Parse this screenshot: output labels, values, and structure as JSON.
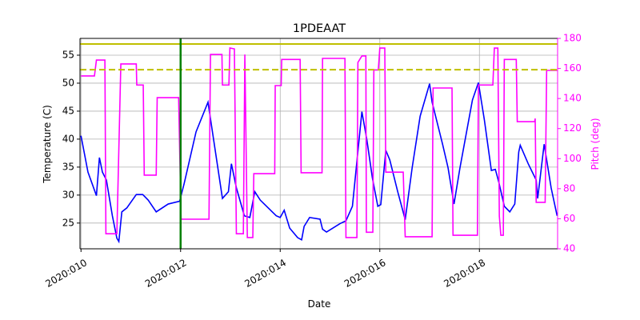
{
  "chart_data": {
    "type": "line",
    "title": "1PDEAAT",
    "xlabel": "Date",
    "ylabel": "Temperature (C)",
    "y2label": "Pitch (deg)",
    "xlim": [
      9.98,
      19.57
    ],
    "ylim": [
      20.4,
      58
    ],
    "y2lim": [
      40,
      180
    ],
    "xticks": [
      {
        "value": 10,
        "label": "2020:010"
      },
      {
        "value": 12,
        "label": "2020:012"
      },
      {
        "value": 14,
        "label": "2020:014"
      },
      {
        "value": 16,
        "label": "2020:016"
      },
      {
        "value": 18,
        "label": "2020:018"
      }
    ],
    "yticks": [
      25,
      30,
      35,
      40,
      45,
      50,
      55
    ],
    "y2ticks": [
      40,
      60,
      80,
      100,
      120,
      140,
      160,
      180
    ],
    "grid": true,
    "y2color": "#ff00ff",
    "hlines": [
      {
        "value": 57,
        "color": "#bfbf00",
        "dashed": false
      },
      {
        "value": 52.4,
        "color": "#bfbf00",
        "dashed": true
      }
    ],
    "vlines": [
      {
        "value": 12,
        "color": "#008000"
      }
    ],
    "series": [
      {
        "color": "#0000ff",
        "axis": "y",
        "x": [
          10.0,
          10.14,
          10.31,
          10.37,
          10.43,
          10.51,
          10.63,
          10.72,
          10.76,
          10.82,
          10.92,
          11.11,
          11.24,
          11.35,
          11.51,
          11.75,
          11.98,
          12.07,
          12.31,
          12.55,
          12.84,
          12.96,
          13.02,
          13.12,
          13.28,
          13.39,
          13.49,
          13.6,
          13.84,
          13.92,
          14.0,
          14.08,
          14.19,
          14.35,
          14.43,
          14.48,
          14.59,
          14.8,
          14.85,
          14.93,
          15.2,
          15.32,
          15.45,
          15.64,
          15.74,
          15.85,
          15.96,
          16.02,
          16.12,
          16.2,
          16.36,
          16.51,
          16.65,
          16.81,
          17.0,
          17.05,
          17.26,
          17.37,
          17.49,
          17.61,
          17.86,
          17.98,
          18.1,
          18.24,
          18.32,
          18.39,
          18.5,
          18.61,
          18.71,
          18.79,
          18.82,
          18.98,
          19.14,
          19.17,
          19.3,
          19.44,
          19.56
        ],
        "values": [
          40.6,
          34.1,
          29.9,
          36.7,
          34.1,
          32.7,
          26.3,
          22.3,
          21.7,
          27,
          27.7,
          30.1,
          30.1,
          29.1,
          27,
          28.4,
          28.9,
          32,
          41.3,
          46.6,
          29.4,
          30.6,
          35.6,
          31.3,
          26.3,
          26,
          30.6,
          29.1,
          27,
          26.3,
          26,
          27.3,
          24.1,
          22.4,
          22,
          24.4,
          26,
          25.7,
          23.9,
          23.4,
          24.9,
          25.4,
          28,
          44.9,
          39.9,
          33.1,
          28,
          28.3,
          38,
          36.3,
          30.6,
          25.6,
          34.9,
          44.1,
          49.9,
          46.6,
          39.1,
          34.9,
          28.4,
          34.9,
          47,
          50.1,
          43.4,
          34.4,
          34.6,
          32.3,
          28,
          27,
          28.4,
          37.7,
          38.9,
          35.6,
          32.7,
          29.4,
          39.1,
          31.3,
          26.3
        ]
      },
      {
        "color": "#ff00ff",
        "axis": "y2",
        "x": [
          10.0,
          10.27,
          10.31,
          10.48,
          10.5,
          10.72,
          10.8,
          11.11,
          11.12,
          11.25,
          11.27,
          11.51,
          11.53,
          11.96,
          12.01,
          12.57,
          12.6,
          12.83,
          12.84,
          12.97,
          12.99,
          13.08,
          13.12,
          13.26,
          13.29,
          13.34,
          13.45,
          13.47,
          13.89,
          13.9,
          14.02,
          14.03,
          14.4,
          14.42,
          14.84,
          14.85,
          15.3,
          15.32,
          15.54,
          15.56,
          15.64,
          15.72,
          15.73,
          15.86,
          15.88,
          15.97,
          16.0,
          16.1,
          16.12,
          16.47,
          16.51,
          17.05,
          17.07,
          17.45,
          17.47,
          17.96,
          17.98,
          18.27,
          18.3,
          18.37,
          18.4,
          18.43,
          18.48,
          18.5,
          18.74,
          18.76,
          19.11,
          19.12,
          19.14,
          19.32,
          19.35,
          19.56
        ],
        "values": [
          155,
          155,
          165.6,
          165.6,
          50,
          50,
          163,
          163,
          149,
          149,
          89,
          89,
          140.6,
          140.6,
          59.7,
          59.7,
          169.3,
          169.3,
          149,
          149,
          173.6,
          173,
          50,
          50,
          169.3,
          47.5,
          47.5,
          90,
          90,
          148.6,
          148.6,
          166,
          166,
          90.6,
          90.6,
          166.7,
          166.7,
          47.5,
          47.5,
          164,
          168.3,
          168.3,
          51,
          51,
          159,
          159,
          173.6,
          173.6,
          91,
          91,
          48,
          48,
          147,
          147,
          49,
          49,
          149,
          149,
          173.6,
          173.6,
          61.8,
          49,
          49,
          166,
          166,
          124.6,
          124.6,
          126.7,
          70.9,
          70.9,
          158.7,
          158.7
        ]
      }
    ]
  }
}
